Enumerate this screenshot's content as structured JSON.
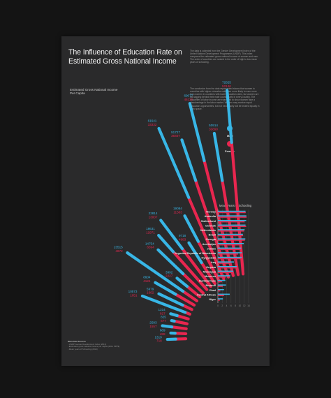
{
  "poster": {
    "title": "The Influence of Education Rate on Estimated Gross National Income",
    "paragraph1": "The data is collected from the Gender Development Index of the United Nations Development Programme (UNDP). This index compares the estimated gross national income of women and men. The order of countries are ranked in the order of high to low mean years of schooling.",
    "paragraph2": "The conclusion from the data represented shows that women in countries with higher education rates are more likely to earn more than women in countries with lower education rates, but women are still lagging behind their male counterparts in every country. The disparities of labor income are examined to show women face a disadvantage in the labor market. Women may receive equal education opportunities, but not necessarily will be treated equally in work space.",
    "left_axis_label": "Estimated Gross National Income Per Capita",
    "legend_male": "Male",
    "legend_female": "Female",
    "right_axis_label": "Mean Years of Schooling",
    "footer_heading": "Main Data Sources",
    "footer_lines": [
      "- UNDP Gender Development Index (2013)",
      "- Estimated gross national income per capita (2011 PPP$)",
      "- Mean years of Schooling (2014)"
    ],
    "colors": {
      "male": "#38b6e6",
      "female": "#e8264f",
      "background": "#2a2a2b",
      "page": "#141414"
    }
  },
  "chart_data": [
    {
      "type": "radial-bar",
      "title": "Estimated Gross National Income Per Capita",
      "series": [
        {
          "name": "Male",
          "color": "#38b6e6"
        },
        {
          "name": "Female",
          "color": "#e8264f"
        }
      ],
      "points": [
        {
          "male": "72825",
          "female": "52146"
        },
        {
          "male": "50914",
          "female": "33890"
        },
        {
          "male": "69077",
          "female": "46132"
        },
        {
          "male": "51727",
          "female": "36407"
        },
        {
          "male": "61641",
          "female": "33332"
        },
        {
          "male": "19084",
          "female": "11583"
        },
        {
          "male": "9718",
          "female": "4983"
        },
        {
          "male": "22814",
          "female": "13007"
        },
        {
          "male": "18631",
          "female": "12971"
        },
        {
          "male": "14754",
          "female": "6594"
        },
        {
          "male": "3992",
          "female": "2227"
        },
        {
          "male": "23515",
          "female": "4672"
        },
        {
          "male": "8604",
          "female": "4124"
        },
        {
          "male": "5979",
          "female": "1662"
        },
        {
          "male": "10573",
          "female": "1051"
        },
        {
          "male": "1314",
          "female": "827"
        },
        {
          "male": "825",
          "female": "677"
        },
        {
          "male": "2593",
          "female": "1557"
        },
        {
          "male": "689",
          "female": "488"
        },
        {
          "male": "1319",
          "female": "718"
        }
      ],
      "legend": "right"
    },
    {
      "type": "bar",
      "title": "Mean Years of Schooling",
      "categories": [
        "Norway",
        "Australia",
        "Switzerland",
        "Denmak",
        "Netherlands",
        "Brazil",
        "Georgia",
        "Azerbaijan",
        "Jordan",
        "Yugoslav Republic of Macedonia",
        "Kyrgyzstan",
        "Iraq",
        "Guyana",
        "Nicaragua",
        "Morocco",
        "Burkina Faso",
        "Burundi",
        "Chad",
        "Central African",
        "Niger"
      ],
      "series": [
        {
          "name": "Male",
          "values": [
            12.6,
            13.0,
            12.9,
            12.6,
            12.2,
            11.4,
            12.5,
            11.8,
            10.6,
            10.9,
            10.9,
            7.3,
            8.6,
            7.0,
            5.6,
            3.4,
            3.7,
            2.8,
            5.4,
            2.3
          ]
        },
        {
          "name": "Female",
          "values": [
            12.7,
            13.1,
            12.2,
            12.9,
            11.9,
            11.5,
            12.3,
            11.0,
            10.0,
            9.2,
            11.0,
            5.7,
            8.7,
            7.0,
            3.7,
            1.9,
            2.2,
            1.1,
            2.8,
            0.9
          ]
        }
      ],
      "xlim": [
        0,
        14
      ],
      "ticks": [
        "0",
        "2",
        "4",
        "6",
        "8",
        "10",
        "12",
        "14"
      ],
      "grid": true
    }
  ]
}
